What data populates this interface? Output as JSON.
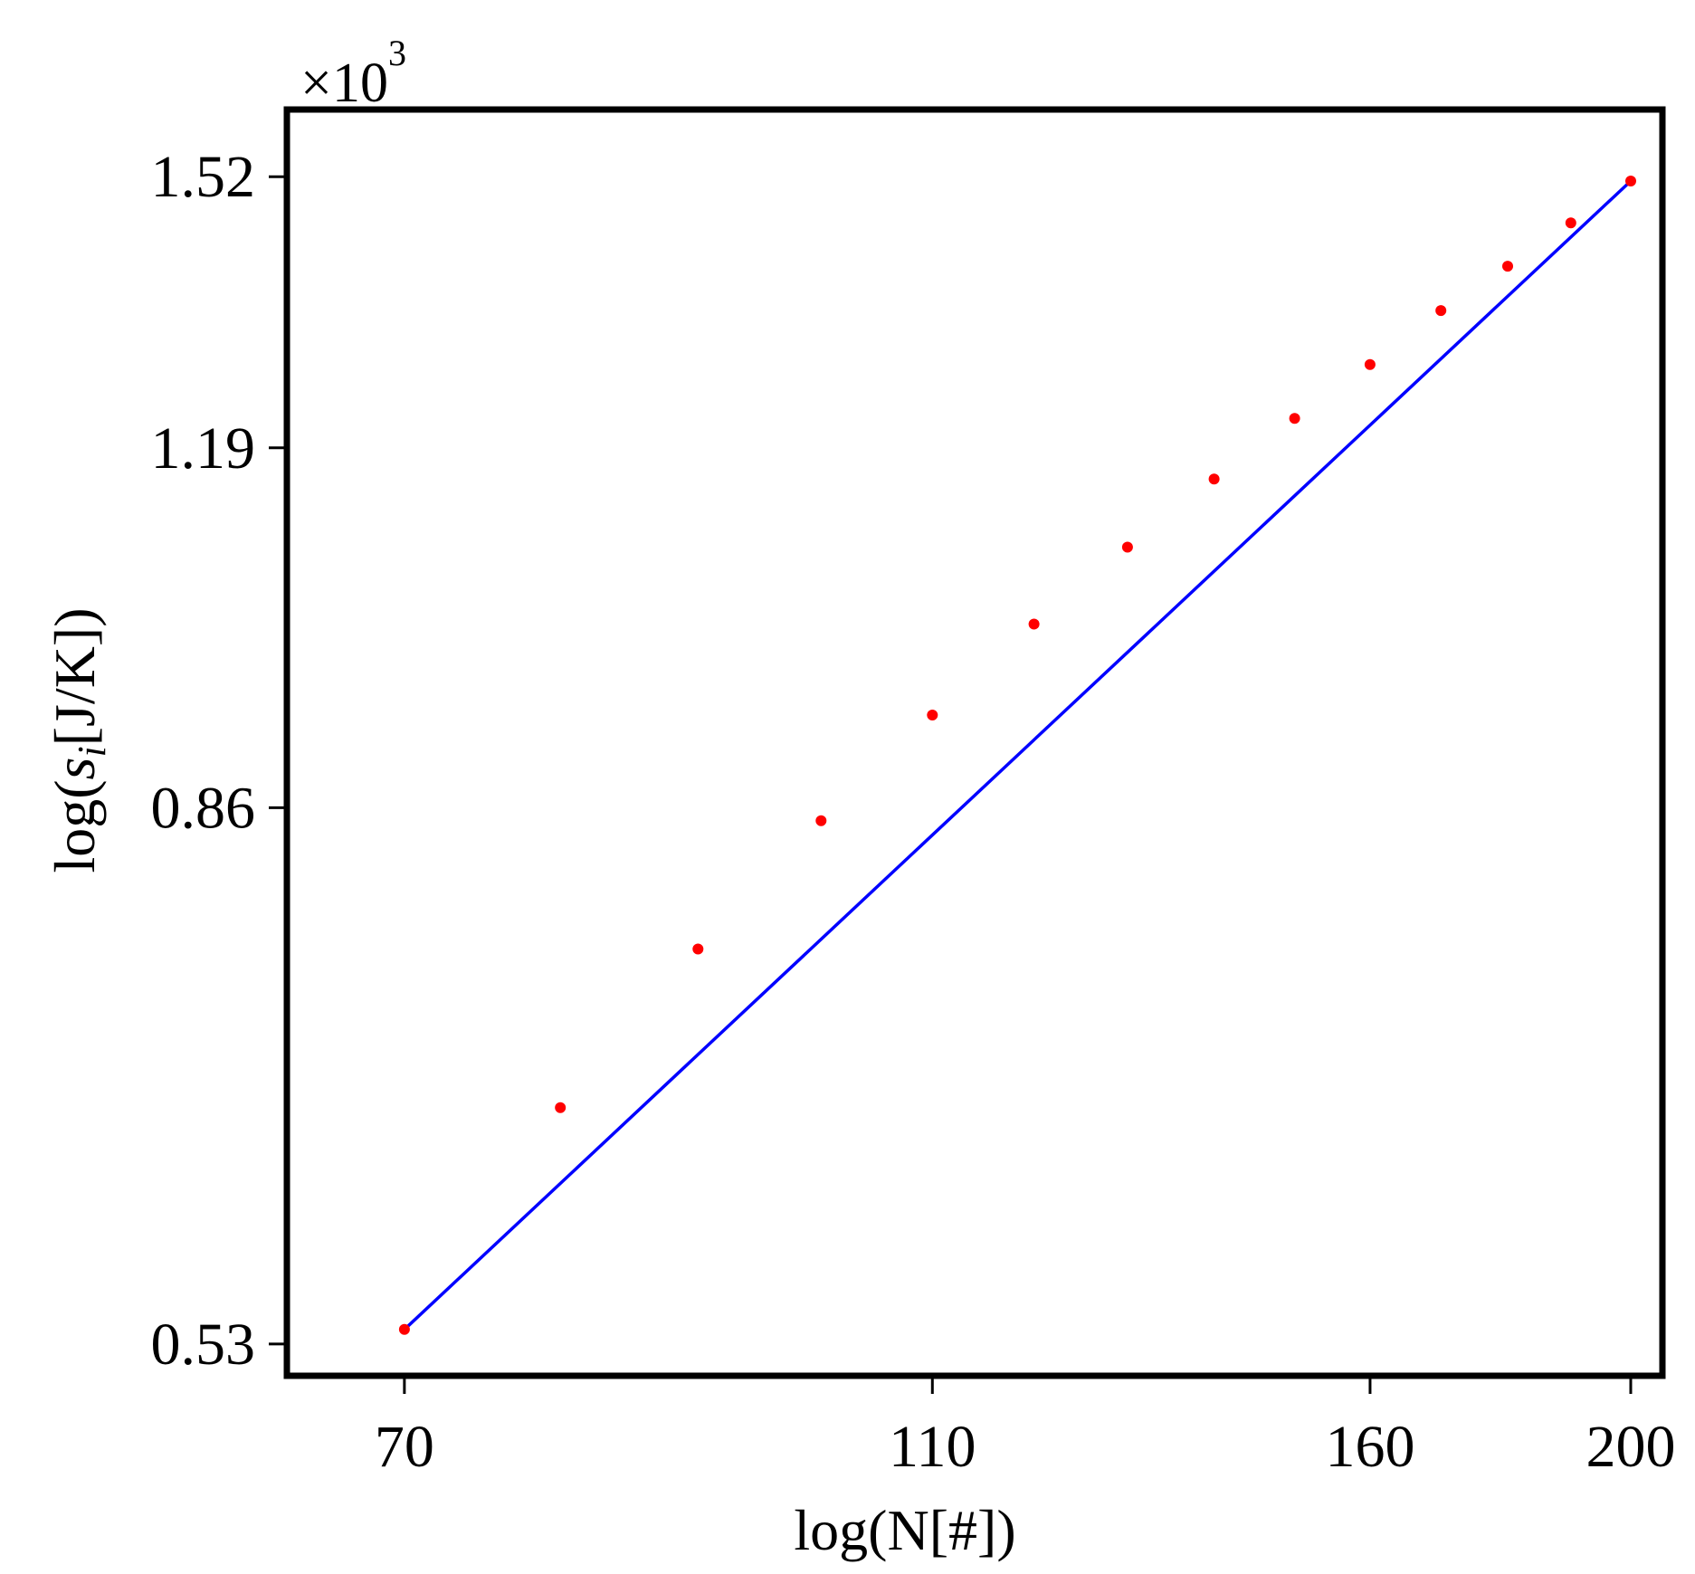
{
  "chart_data": {
    "type": "scatter",
    "title": "",
    "xlabel": "log(N[#])",
    "ylabel_prefix": "log(",
    "ylabel_symbol": "s",
    "ylabel_subscript": "i",
    "ylabel_suffix": "[J/K])",
    "y_multiplier": {
      "base": "×10",
      "exponent": "3"
    },
    "xlim": [
      63.3,
      205.5
    ],
    "ylim": [
      0.515,
      1.615
    ],
    "x_scale": "log",
    "y_scale": "log",
    "x_ticks": [
      70,
      110,
      160,
      200
    ],
    "x_tick_labels": [
      "70",
      "110",
      "160",
      "200"
    ],
    "y_ticks": [
      0.53,
      0.86,
      1.19,
      1.52
    ],
    "y_tick_labels": [
      "0.53",
      "0.86",
      "1.19",
      "1.52"
    ],
    "grid": false,
    "legend": "none",
    "colors": {
      "points": "#ff0000",
      "fit": "#0000ff",
      "frame": "#000000"
    },
    "series": [
      {
        "type": "scatter",
        "x": [
          70,
          80,
          90,
          100,
          110,
          120,
          130,
          140,
          150,
          160,
          170,
          180,
          190,
          200
        ],
        "y": [
          0.537,
          0.656,
          0.757,
          0.85,
          0.935,
          1.015,
          1.088,
          1.157,
          1.222,
          1.283,
          1.347,
          1.402,
          1.458,
          1.514
        ]
      },
      {
        "type": "line",
        "x": [
          70,
          200
        ],
        "y": [
          0.537,
          1.514
        ]
      }
    ]
  }
}
